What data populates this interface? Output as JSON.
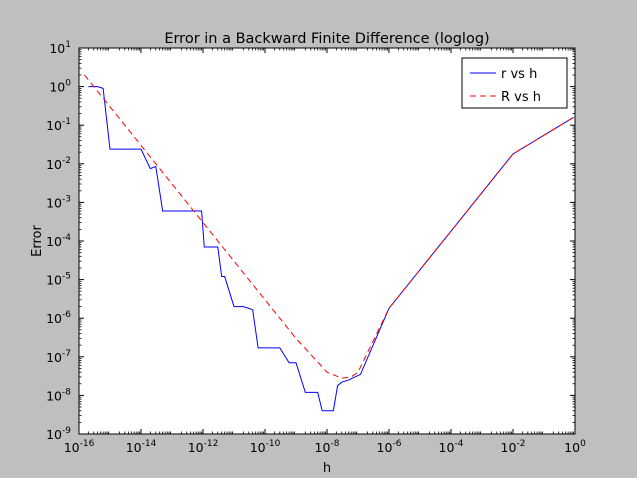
{
  "chart_data": {
    "type": "line",
    "title": "Error in a Backward Finite Difference (loglog)",
    "xlabel": "h",
    "ylabel": "Error",
    "xscale": "log",
    "yscale": "log",
    "xlim": [
      1e-16,
      1
    ],
    "ylim": [
      1e-09,
      10
    ],
    "grid": false,
    "legend_position": "top-right",
    "x_ticks": [
      {
        "value": 1e-16,
        "base": "10",
        "exp": "-16"
      },
      {
        "value": 1e-14,
        "base": "10",
        "exp": "-14"
      },
      {
        "value": 1e-12,
        "base": "10",
        "exp": "-12"
      },
      {
        "value": 1e-10,
        "base": "10",
        "exp": "-10"
      },
      {
        "value": 1e-08,
        "base": "10",
        "exp": "-8"
      },
      {
        "value": 1e-06,
        "base": "10",
        "exp": "-6"
      },
      {
        "value": 0.0001,
        "base": "10",
        "exp": "-4"
      },
      {
        "value": 0.01,
        "base": "10",
        "exp": "-2"
      },
      {
        "value": 1,
        "base": "10",
        "exp": "0"
      }
    ],
    "y_ticks": [
      {
        "value": 1e-09,
        "base": "10",
        "exp": "-9"
      },
      {
        "value": 1e-08,
        "base": "10",
        "exp": "-8"
      },
      {
        "value": 1e-07,
        "base": "10",
        "exp": "-7"
      },
      {
        "value": 1e-06,
        "base": "10",
        "exp": "-6"
      },
      {
        "value": 1e-05,
        "base": "10",
        "exp": "-5"
      },
      {
        "value": 0.0001,
        "base": "10",
        "exp": "-4"
      },
      {
        "value": 0.001,
        "base": "10",
        "exp": "-3"
      },
      {
        "value": 0.01,
        "base": "10",
        "exp": "-2"
      },
      {
        "value": 0.1,
        "base": "10",
        "exp": "-1"
      },
      {
        "value": 1,
        "base": "10",
        "exp": "0"
      },
      {
        "value": 10,
        "base": "10",
        "exp": "1"
      }
    ],
    "series": [
      {
        "name": "r vs h",
        "color": "#0000ff",
        "dash": "solid",
        "x": [
          2e-16,
          4e-16,
          6e-16,
          1e-15,
          2e-15,
          3e-15,
          5e-15,
          1e-14,
          2e-14,
          3e-14,
          5e-14,
          8e-14,
          1e-13,
          3e-13,
          6e-13,
          9e-13,
          1.1e-12,
          2e-12,
          3e-12,
          4e-12,
          5e-12,
          1e-11,
          2e-11,
          3e-11,
          4e-11,
          6e-11,
          1e-10,
          3e-10,
          6e-10,
          1e-09,
          2e-09,
          3e-09,
          5e-09,
          7e-09,
          1e-08,
          1.6e-08,
          2.2e-08,
          3e-08,
          5e-08,
          8e-08,
          1.2e-07,
          1e-06,
          0.0001,
          0.01,
          0.9
        ],
        "y": [
          1.0,
          1.0,
          0.9,
          0.024,
          0.024,
          0.024,
          0.024,
          0.024,
          0.0075,
          0.0085,
          0.0006,
          0.0006,
          0.0006,
          0.0006,
          0.0006,
          0.0006,
          7e-05,
          7e-05,
          7e-05,
          1.2e-05,
          1.2e-05,
          2e-06,
          2e-06,
          1.8e-06,
          1.65e-06,
          1.7e-07,
          1.7e-07,
          1.7e-07,
          7e-08,
          7e-08,
          1.2e-08,
          1.2e-08,
          1.2e-08,
          4e-09,
          4e-09,
          4e-09,
          1.8e-08,
          2.2e-08,
          2.5e-08,
          3e-08,
          3.5e-08,
          1.8e-06,
          0.00018,
          0.018,
          0.16
        ]
      },
      {
        "name": "R vs h",
        "color": "#ff0000",
        "dash": "dashed",
        "x": [
          1.5e-16,
          1e-15,
          1e-14,
          1e-13,
          1e-12,
          1e-11,
          1e-10,
          1e-09,
          1e-08,
          3e-08,
          6e-08,
          1e-07,
          1e-06,
          0.0001,
          0.01,
          0.9
        ],
        "y": [
          2.0,
          0.3,
          0.03,
          0.003,
          0.0003,
          3e-05,
          3e-06,
          3e-07,
          4e-08,
          2.8e-08,
          3e-08,
          4e-08,
          1.8e-06,
          0.00018,
          0.018,
          0.16
        ]
      }
    ]
  }
}
